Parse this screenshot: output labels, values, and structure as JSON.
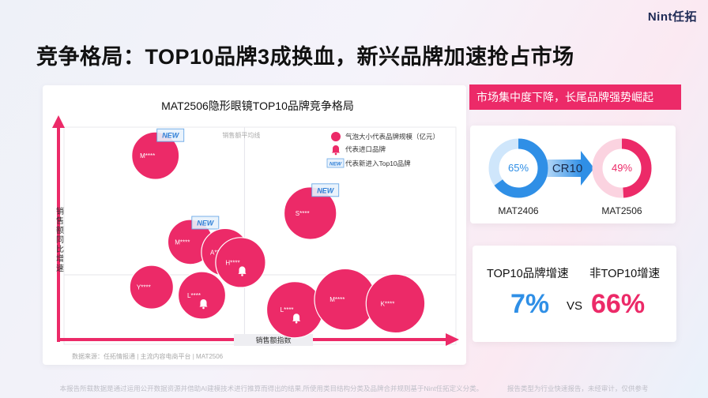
{
  "brand": "Nint任拓",
  "page_title": "竞争格局：TOP10品牌3成换血，新兴品牌加速抢占市场",
  "chart_data": {
    "type": "scatter",
    "title": "MAT2506隐形眼镜TOP10品牌竞争格局",
    "xlabel": "销售额指数",
    "ylabel": "销售额同比增速",
    "avg_line_label": "销售额平均线",
    "legend": {
      "bubble": "气泡大小代表品牌规模（亿元）",
      "import": "代表进口品牌",
      "new": "代表新进入Top10品牌",
      "new_badge": "NEW"
    },
    "xlim": [
      0,
      100
    ],
    "ylim": [
      0,
      100
    ],
    "quadrant_x": 46,
    "quadrant_y": 30,
    "points": [
      {
        "label": "M****",
        "x": 23,
        "y": 88,
        "size": 1.0,
        "import": false,
        "new": true
      },
      {
        "label": "S****",
        "x": 63,
        "y": 60,
        "size": 1.2,
        "import": false,
        "new": true
      },
      {
        "label": "M****",
        "x": 32,
        "y": 46,
        "size": 0.9,
        "import": false,
        "new": true
      },
      {
        "label": "A****",
        "x": 41,
        "y": 41,
        "size": 1.0,
        "import": true,
        "new": false
      },
      {
        "label": "H****",
        "x": 45,
        "y": 36,
        "size": 1.1,
        "import": true,
        "new": false
      },
      {
        "label": "Y****",
        "x": 22,
        "y": 24,
        "size": 0.85,
        "import": false,
        "new": false
      },
      {
        "label": "L****",
        "x": 35,
        "y": 20,
        "size": 1.0,
        "import": true,
        "new": false
      },
      {
        "label": "L****",
        "x": 59,
        "y": 13,
        "size": 1.35,
        "import": true,
        "new": false
      },
      {
        "label": "M****",
        "x": 72,
        "y": 18,
        "size": 1.55,
        "import": false,
        "new": false
      },
      {
        "label": "K****",
        "x": 85,
        "y": 16,
        "size": 1.45,
        "import": false,
        "new": false
      }
    ],
    "source": "数据来源：任拓情报通 | 主流内容电商平台 | MAT2506"
  },
  "headline_tag": "市场集中度下降，长尾品牌强势崛起",
  "cr": {
    "label": "CR10",
    "before": {
      "value": 65,
      "text": "65%",
      "period": "MAT2406"
    },
    "after": {
      "value": 49,
      "text": "49%",
      "period": "MAT2506"
    }
  },
  "growth": {
    "top10_label": "TOP10品牌增速",
    "top10_value": "7%",
    "non_label": "非TOP10增速",
    "non_value": "66%",
    "vs": "VS"
  },
  "footer": {
    "left": "本报告所载数据是通过运用公开数据资源并借助AI建模技术进行推算而得出的结果,所使用类目结构分类及品牌合并规则基于Nint任拓定义分类。",
    "right": "报告类型为行业快速报告，未经审计，仅供参考"
  },
  "colors": {
    "accent": "#ec2a68",
    "blue": "#2f8fe6",
    "light_blue": "#cfe6fb",
    "light_pink": "#fbd3e0"
  }
}
